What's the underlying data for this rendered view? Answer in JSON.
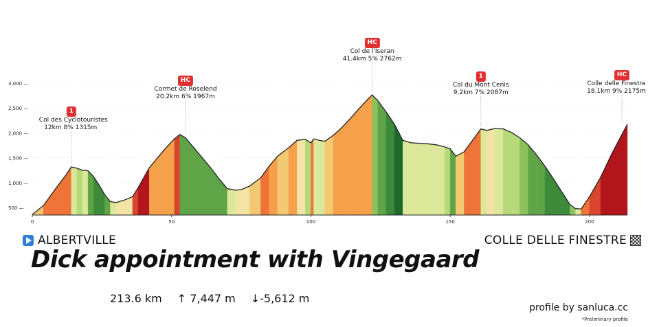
{
  "chart_data": {
    "type": "area",
    "title": "",
    "xlabel": "",
    "ylabel": "",
    "xlim": [
      0,
      213.6
    ],
    "ylim": [
      350,
      3150
    ],
    "x_ticks": [
      0,
      50,
      100,
      150,
      200
    ],
    "y_ticks": [
      500,
      1000,
      1500,
      2000,
      2500,
      3000
    ],
    "y_tick_labels": [
      "500 —",
      "1,000 —",
      "1,500 —",
      "2,000 —",
      "2,500 —",
      "3,000 —"
    ],
    "profile": {
      "x": [
        0,
        4,
        8,
        12,
        14,
        16,
        18,
        20,
        22,
        24,
        26,
        28,
        30,
        33,
        36,
        38,
        40,
        42,
        45,
        48,
        51,
        53,
        55,
        58,
        61,
        64,
        67,
        70,
        73,
        75,
        78,
        82,
        85,
        88,
        92,
        95,
        98,
        100,
        101,
        103,
        105,
        108,
        111,
        114,
        117,
        120,
        122,
        124,
        127,
        130,
        133,
        136,
        139,
        142,
        145,
        148,
        150,
        152,
        155,
        158,
        161,
        163,
        166,
        169,
        172,
        175,
        178,
        181,
        184,
        187,
        190,
        193,
        195,
        197,
        200,
        204,
        208,
        213.6
      ],
      "y": [
        360,
        540,
        850,
        1150,
        1315,
        1290,
        1250,
        1240,
        1120,
        950,
        760,
        620,
        600,
        650,
        720,
        900,
        1100,
        1300,
        1500,
        1700,
        1880,
        1967,
        1900,
        1700,
        1500,
        1300,
        1080,
        880,
        850,
        860,
        930,
        1100,
        1330,
        1530,
        1700,
        1850,
        1870,
        1800,
        1880,
        1850,
        1830,
        1950,
        2100,
        2280,
        2470,
        2650,
        2762,
        2650,
        2420,
        2170,
        1850,
        1800,
        1790,
        1780,
        1760,
        1720,
        1680,
        1530,
        1620,
        1850,
        2080,
        2050,
        2087,
        2080,
        2010,
        1900,
        1760,
        1560,
        1330,
        1080,
        820,
        560,
        480,
        470,
        720,
        1110,
        1580,
        2175
      ],
      "gradient_pct": [
        4.5,
        7.8,
        7.5,
        8.2,
        -1,
        -2,
        -0.5,
        -6,
        -8.5,
        -9.5,
        -7,
        -0.8,
        1.7,
        2.3,
        9,
        10,
        10,
        6.7,
        6.7,
        6,
        8.7,
        -6.8,
        -6.7,
        -6.7,
        -6.7,
        -7.3,
        -6.7,
        -1,
        0.5,
        2.3,
        4.3,
        7.7,
        6.7,
        4.3,
        5,
        0.7,
        -3.5,
        8,
        -1.5,
        -1,
        4,
        5,
        6,
        6.3,
        6,
        5.6,
        -5.6,
        -7.7,
        -8.3,
        -10.7,
        -1.7,
        -0.3,
        -0.3,
        -0.7,
        -1.3,
        -2,
        -7.5,
        3,
        7.7,
        7.7,
        -1.5,
        1.2,
        -0.2,
        -2.3,
        -3.7,
        -4.7,
        -6.7,
        -7.7,
        -8.3,
        -8.7,
        -8.7,
        -4,
        -0.5,
        8.3,
        9.8,
        11.8,
        10.6
      ]
    },
    "climbs": [
      {
        "category": "1",
        "name": "Col des Cyclotouristes",
        "stats": "12km 8% 1315m",
        "km": 14,
        "alt": 1315
      },
      {
        "category": "HC",
        "name": "Cormet de Roselend",
        "stats": "20.2km 6% 1967m",
        "km": 55,
        "alt": 1967
      },
      {
        "category": "HC",
        "name": "Col de l'Iseran",
        "stats": "41.4km 5% 2762m",
        "km": 122,
        "alt": 2762
      },
      {
        "category": "1",
        "name": "Col du Mont Cenis",
        "stats": "9.2km 7% 2087m",
        "km": 161,
        "alt": 2087
      },
      {
        "category": "HC",
        "name": "Colle delle Finestre",
        "stats": "18.1km 9% 2175m",
        "km": 213.6,
        "alt": 2175
      }
    ]
  },
  "start": "ALBERTVILLE",
  "finish": "COLLE DELLE FINESTRE",
  "headline": "Dick appointment with Vingegaard",
  "stats": {
    "distance": "213.6 km",
    "ascent": "↑ 7,447 m",
    "descent": "↓-5,612 m"
  },
  "credit": "profile by sanluca.cc",
  "note": "*Preliminary profile",
  "colors": {
    "start_icon": "#2f7fd8",
    "badge": "#e03030"
  }
}
